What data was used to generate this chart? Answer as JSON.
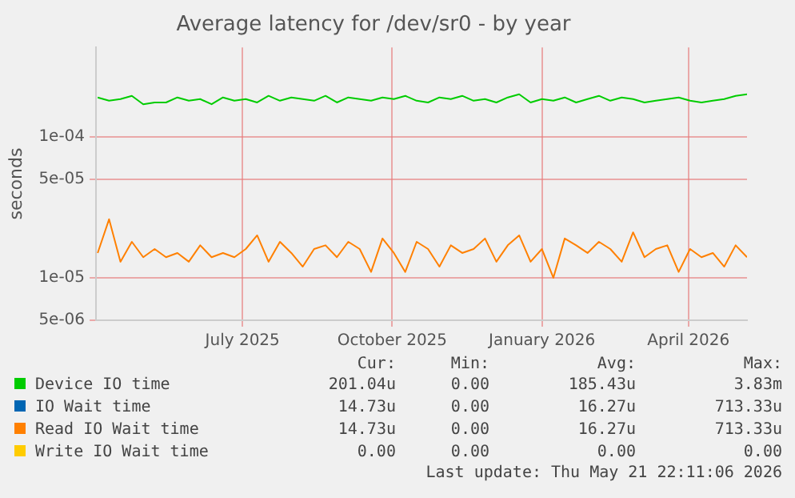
{
  "chart_data": {
    "type": "line",
    "title": "Average latency for /dev/sr0 - by year",
    "ylabel": "seconds",
    "log": "y",
    "grid": true,
    "legend": "bottom",
    "marker": "none",
    "line_style": "solid",
    "x": [
      "2025-04-17",
      "2025-04-24",
      "2025-05-01",
      "2025-05-08",
      "2025-05-15",
      "2025-05-22",
      "2025-05-29",
      "2025-06-05",
      "2025-06-12",
      "2025-06-19",
      "2025-06-26",
      "2025-07-03",
      "2025-07-10",
      "2025-07-17",
      "2025-07-24",
      "2025-07-31",
      "2025-08-07",
      "2025-08-14",
      "2025-08-21",
      "2025-08-28",
      "2025-09-04",
      "2025-09-11",
      "2025-09-18",
      "2025-09-25",
      "2025-10-02",
      "2025-10-09",
      "2025-10-16",
      "2025-10-23",
      "2025-10-30",
      "2025-11-06",
      "2025-11-13",
      "2025-11-20",
      "2025-11-27",
      "2025-12-04",
      "2025-12-11",
      "2025-12-18",
      "2025-12-25",
      "2026-01-01",
      "2026-01-08",
      "2026-01-15",
      "2026-01-22",
      "2026-01-29",
      "2026-02-05",
      "2026-02-12",
      "2026-02-19",
      "2026-02-26",
      "2026-03-05",
      "2026-03-12",
      "2026-03-19",
      "2026-03-26",
      "2026-04-02",
      "2026-04-09",
      "2026-04-16",
      "2026-04-23",
      "2026-04-30",
      "2026-05-07",
      "2026-05-14",
      "2026-05-21"
    ],
    "xlim": [
      "2025-04-16",
      "2026-05-21"
    ],
    "xticks": [
      {
        "value": "2025-07-15",
        "label": "July 2025"
      },
      {
        "value": "2025-10-15",
        "label": "October 2025"
      },
      {
        "value": "2026-01-15",
        "label": "January 2026"
      },
      {
        "value": "2026-04-15",
        "label": "April 2026"
      }
    ],
    "ylim": [
      5e-06,
      0.00043
    ],
    "yticks": [
      {
        "value": 5e-06,
        "label": "5e-06"
      },
      {
        "value": 1e-05,
        "label": "1e-05"
      },
      {
        "value": 5e-05,
        "label": "5e-05"
      },
      {
        "value": 0.0001,
        "label": "1e-04"
      }
    ],
    "series": [
      {
        "name": "Device IO time",
        "color": "#00cc00",
        "values": [
          0.00019,
          0.00018,
          0.000185,
          0.000195,
          0.00017,
          0.000175,
          0.000175,
          0.00019,
          0.00018,
          0.000185,
          0.00017,
          0.00019,
          0.00018,
          0.000185,
          0.000175,
          0.000195,
          0.00018,
          0.00019,
          0.000185,
          0.00018,
          0.000195,
          0.000175,
          0.00019,
          0.000185,
          0.00018,
          0.00019,
          0.000185,
          0.000195,
          0.00018,
          0.000175,
          0.00019,
          0.000185,
          0.000195,
          0.00018,
          0.000185,
          0.000175,
          0.00019,
          0.0002,
          0.000175,
          0.000185,
          0.00018,
          0.00019,
          0.000175,
          0.000185,
          0.000195,
          0.00018,
          0.00019,
          0.000185,
          0.000175,
          0.00018,
          0.000185,
          0.00019,
          0.00018,
          0.000175,
          0.00018,
          0.000185,
          0.000195,
          0.0002
        ]
      },
      {
        "name": "IO Wait time",
        "color": "#0066b3",
        "values": [
          null,
          null,
          null,
          null,
          null,
          null,
          null,
          null,
          null,
          null,
          null,
          null,
          null,
          null,
          null,
          null,
          null,
          null,
          null,
          null,
          null,
          null,
          null,
          null,
          null,
          null,
          null,
          null,
          null,
          null,
          null,
          null,
          null,
          null,
          null,
          null,
          null,
          null,
          null,
          null,
          null,
          null,
          null,
          null,
          null,
          null,
          null,
          null,
          null,
          null,
          null,
          null,
          null,
          null,
          null,
          null,
          null,
          null
        ]
      },
      {
        "name": "Read IO Wait time",
        "color": "#ff8000",
        "values": [
          1.5e-05,
          2.6e-05,
          1.3e-05,
          1.8e-05,
          1.4e-05,
          1.6e-05,
          1.4e-05,
          1.5e-05,
          1.3e-05,
          1.7e-05,
          1.4e-05,
          1.5e-05,
          1.4e-05,
          1.6e-05,
          2e-05,
          1.3e-05,
          1.8e-05,
          1.5e-05,
          1.2e-05,
          1.6e-05,
          1.7e-05,
          1.4e-05,
          1.8e-05,
          1.6e-05,
          1.1e-05,
          1.9e-05,
          1.5e-05,
          1.1e-05,
          1.8e-05,
          1.6e-05,
          1.2e-05,
          1.7e-05,
          1.5e-05,
          1.6e-05,
          1.9e-05,
          1.3e-05,
          1.7e-05,
          2e-05,
          1.3e-05,
          1.6e-05,
          1e-05,
          1.9e-05,
          1.7e-05,
          1.5e-05,
          1.8e-05,
          1.6e-05,
          1.3e-05,
          2.1e-05,
          1.4e-05,
          1.6e-05,
          1.7e-05,
          1.1e-05,
          1.6e-05,
          1.4e-05,
          1.5e-05,
          1.2e-05,
          1.7e-05,
          1.4e-05
        ]
      },
      {
        "name": "Write IO Wait time",
        "color": "#ffcc00",
        "values": [
          null,
          null,
          null,
          null,
          null,
          null,
          null,
          null,
          null,
          null,
          null,
          null,
          null,
          null,
          null,
          null,
          null,
          null,
          null,
          null,
          null,
          null,
          null,
          null,
          null,
          null,
          null,
          null,
          null,
          null,
          null,
          null,
          null,
          null,
          null,
          null,
          null,
          null,
          null,
          null,
          null,
          null,
          null,
          null,
          null,
          null,
          null,
          null,
          null,
          null,
          null,
          null,
          null,
          null,
          null,
          null,
          null,
          null
        ]
      }
    ],
    "annotations": [
      "Cur:",
      "Min:",
      "Avg:",
      "Max:",
      "201.04u",
      "0.00",
      "185.43u",
      "3.83m",
      "14.73u",
      "0.00",
      "16.27u",
      "713.33u",
      "14.73u",
      "0.00",
      "16.27u",
      "713.33u",
      "0.00",
      "0.00",
      "0.00",
      "0.00",
      "Last update: Thu May 21 22:11:06 2026"
    ]
  }
}
